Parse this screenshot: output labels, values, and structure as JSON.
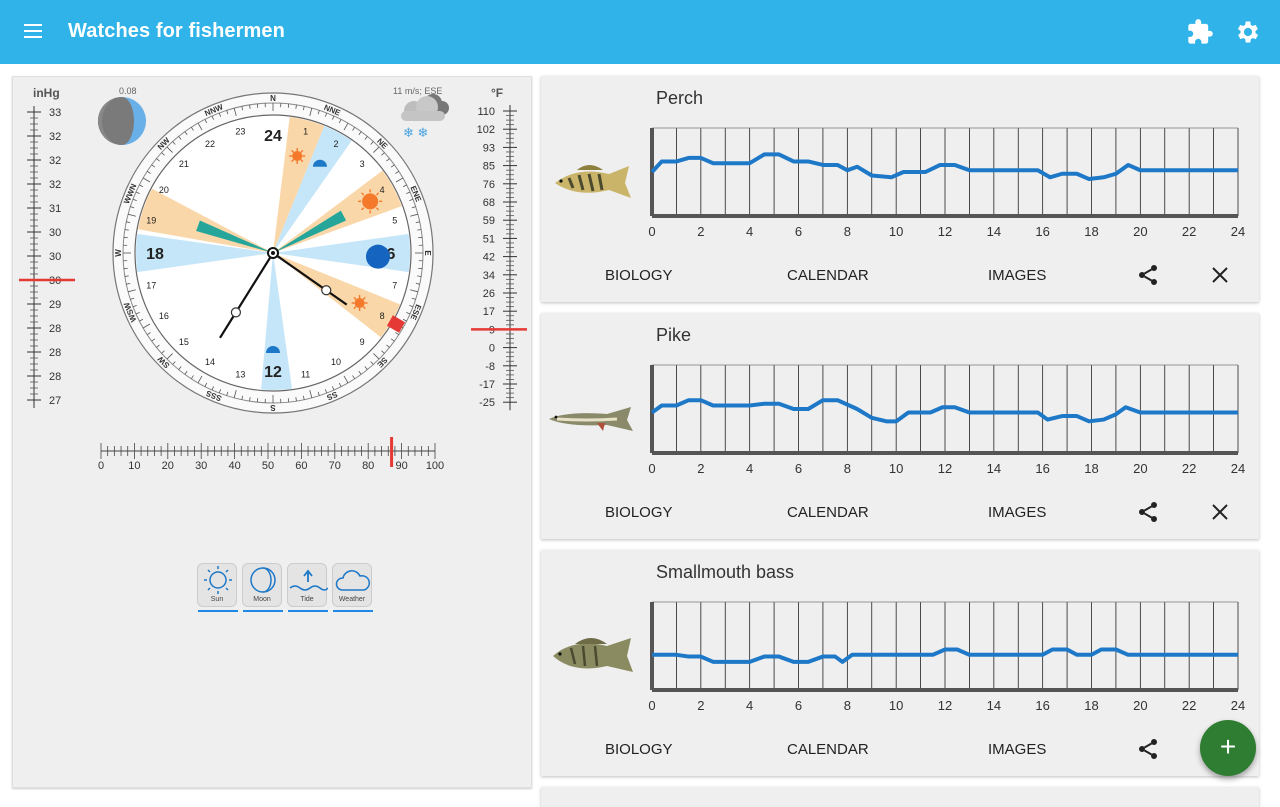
{
  "appbar": {
    "title": "Watches for fishermen",
    "icons": [
      "menu-icon",
      "puzzle-icon",
      "gear-icon"
    ]
  },
  "barometer": {
    "unit": "inHg",
    "ticks": [
      "33",
      "32",
      "32",
      "32",
      "31",
      "30",
      "30",
      "30",
      "29",
      "28",
      "28",
      "28",
      "27"
    ],
    "current_index": 7
  },
  "thermometer": {
    "unit": "°F",
    "ticks": [
      "110",
      "102",
      "93",
      "85",
      "76",
      "68",
      "59",
      "51",
      "42",
      "34",
      "26",
      "17",
      "9",
      "0",
      "-8",
      "-17",
      "-25"
    ],
    "current_index": 12
  },
  "moon": {
    "phase_value": "0.08"
  },
  "weather": {
    "wind": "11 m/s; ESE"
  },
  "dial": {
    "hours": [
      "24",
      "1",
      "2",
      "3",
      "4",
      "5",
      "6",
      "7",
      "8",
      "9",
      "10",
      "11",
      "12",
      "13",
      "14",
      "15",
      "16",
      "17",
      "18",
      "19",
      "20",
      "21",
      "22",
      "23"
    ],
    "directions": [
      "N",
      "NNE",
      "NE",
      "ENE",
      "E",
      "ESE",
      "SE",
      "SS",
      "S",
      "SSS",
      "SW",
      "WSW",
      "W",
      "WWN",
      "NW",
      "NNW"
    ]
  },
  "percent_scale": {
    "labels": [
      "0",
      "10",
      "20",
      "30",
      "40",
      "50",
      "60",
      "70",
      "80",
      "90",
      "100"
    ],
    "value": 87
  },
  "tools": [
    {
      "label": "Sun",
      "icon": "sun-icon"
    },
    {
      "label": "Moon",
      "icon": "moon-icon"
    },
    {
      "label": "Tide",
      "icon": "tide-icon"
    },
    {
      "label": "Weather",
      "icon": "cloud-icon"
    }
  ],
  "cards": [
    {
      "name": "Perch",
      "fish_icon": "perch-fish-icon",
      "actions": {
        "biology": "BIOLOGY",
        "calendar": "CALENDAR",
        "images": "IMAGES"
      },
      "has_close": true,
      "series": [
        [
          0,
          50
        ],
        [
          0.4,
          62
        ],
        [
          1,
          62
        ],
        [
          1.5,
          66
        ],
        [
          2,
          66
        ],
        [
          2.5,
          60
        ],
        [
          3,
          60
        ],
        [
          4,
          60
        ],
        [
          4.6,
          70
        ],
        [
          5.2,
          70
        ],
        [
          5.8,
          62
        ],
        [
          6.4,
          62
        ],
        [
          7,
          58
        ],
        [
          7.6,
          58
        ],
        [
          8,
          52
        ],
        [
          8.4,
          56
        ],
        [
          9,
          46
        ],
        [
          9.8,
          44
        ],
        [
          10.3,
          50
        ],
        [
          11.2,
          50
        ],
        [
          11.8,
          58
        ],
        [
          12.4,
          58
        ],
        [
          13,
          52
        ],
        [
          14,
          52
        ],
        [
          15,
          52
        ],
        [
          15.8,
          52
        ],
        [
          16.3,
          44
        ],
        [
          16.8,
          48
        ],
        [
          17.4,
          48
        ],
        [
          17.9,
          42
        ],
        [
          18.5,
          44
        ],
        [
          19,
          48
        ],
        [
          19.5,
          58
        ],
        [
          20,
          52
        ],
        [
          21,
          52
        ],
        [
          22,
          52
        ],
        [
          24,
          52
        ]
      ],
      "x_labels": [
        "0",
        "2",
        "4",
        "6",
        "8",
        "10",
        "12",
        "14",
        "16",
        "18",
        "20",
        "22",
        "24"
      ]
    },
    {
      "name": "Pike",
      "fish_icon": "pike-fish-icon",
      "actions": {
        "biology": "BIOLOGY",
        "calendar": "CALENDAR",
        "images": "IMAGES"
      },
      "has_close": true,
      "series": [
        [
          0,
          46
        ],
        [
          0.4,
          54
        ],
        [
          1,
          54
        ],
        [
          1.5,
          60
        ],
        [
          2,
          60
        ],
        [
          2.5,
          54
        ],
        [
          3,
          54
        ],
        [
          4,
          54
        ],
        [
          4.6,
          56
        ],
        [
          5.2,
          56
        ],
        [
          5.8,
          50
        ],
        [
          6.4,
          50
        ],
        [
          7,
          60
        ],
        [
          7.6,
          60
        ],
        [
          8.4,
          50
        ],
        [
          9,
          40
        ],
        [
          9.6,
          36
        ],
        [
          10,
          36
        ],
        [
          10.5,
          46
        ],
        [
          11.4,
          46
        ],
        [
          11.9,
          52
        ],
        [
          12.4,
          52
        ],
        [
          13,
          46
        ],
        [
          14,
          46
        ],
        [
          15,
          46
        ],
        [
          15.8,
          46
        ],
        [
          16.2,
          38
        ],
        [
          16.8,
          42
        ],
        [
          17.4,
          42
        ],
        [
          17.9,
          36
        ],
        [
          18.5,
          38
        ],
        [
          19,
          44
        ],
        [
          19.4,
          52
        ],
        [
          20,
          46
        ],
        [
          21,
          46
        ],
        [
          22,
          46
        ],
        [
          24,
          46
        ]
      ],
      "x_labels": [
        "0",
        "2",
        "4",
        "6",
        "8",
        "10",
        "12",
        "14",
        "16",
        "18",
        "20",
        "22",
        "24"
      ]
    },
    {
      "name": "Smallmouth bass",
      "fish_icon": "bass-fish-icon",
      "actions": {
        "biology": "BIOLOGY",
        "calendar": "CALENDAR",
        "images": "IMAGES"
      },
      "has_close": false,
      "series": [
        [
          0,
          40
        ],
        [
          1,
          40
        ],
        [
          1.5,
          38
        ],
        [
          2,
          38
        ],
        [
          2.5,
          32
        ],
        [
          3,
          32
        ],
        [
          4,
          32
        ],
        [
          4.6,
          38
        ],
        [
          5.2,
          38
        ],
        [
          5.8,
          32
        ],
        [
          6.4,
          32
        ],
        [
          7,
          38
        ],
        [
          7.5,
          38
        ],
        [
          7.8,
          32
        ],
        [
          8.2,
          40
        ],
        [
          9,
          40
        ],
        [
          10,
          40
        ],
        [
          11,
          40
        ],
        [
          11.5,
          40
        ],
        [
          12,
          46
        ],
        [
          12.5,
          46
        ],
        [
          13,
          40
        ],
        [
          14,
          40
        ],
        [
          15,
          40
        ],
        [
          16,
          40
        ],
        [
          16.4,
          46
        ],
        [
          17,
          46
        ],
        [
          17.4,
          40
        ],
        [
          18,
          40
        ],
        [
          18.4,
          46
        ],
        [
          19,
          46
        ],
        [
          19.5,
          40
        ],
        [
          20,
          40
        ],
        [
          21,
          40
        ],
        [
          22,
          40
        ],
        [
          24,
          40
        ]
      ],
      "x_labels": [
        "0",
        "2",
        "4",
        "6",
        "8",
        "10",
        "12",
        "14",
        "16",
        "18",
        "20",
        "22",
        "24"
      ]
    }
  ],
  "fab": {
    "label": "+"
  },
  "colors": {
    "appbar": "#2fb3e8",
    "line": "#1e78c8",
    "sun_sector": "#f9d3a0",
    "moon_sector": "#bfe3f7",
    "tide_sector": "#26a69a",
    "marker": "#e53935",
    "fab": "#2e7d32"
  }
}
